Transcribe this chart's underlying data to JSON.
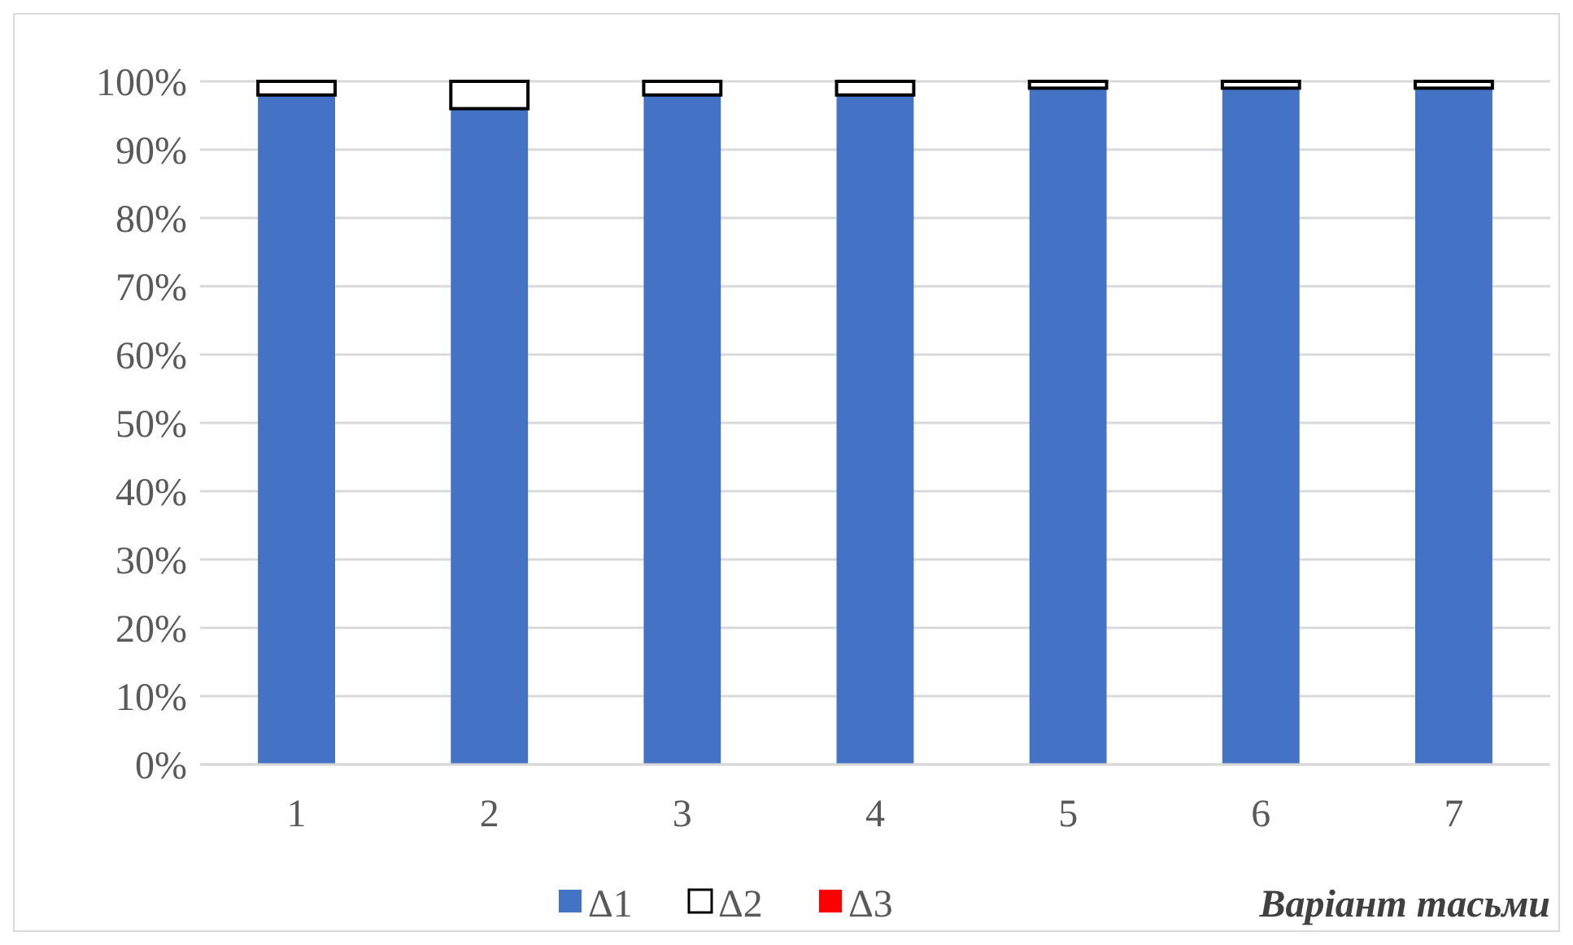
{
  "chart_data": {
    "type": "bar",
    "stacked": true,
    "xlabel": "Варіант тасьми",
    "categories": [
      "1",
      "2",
      "3",
      "4",
      "5",
      "6",
      "7"
    ],
    "series": [
      {
        "name": "Δ1",
        "color": "#4472c4",
        "values": [
          98,
          96,
          98,
          98,
          99,
          99,
          99
        ]
      },
      {
        "name": "Δ2",
        "color": "#ffffff",
        "values": [
          2,
          4,
          2,
          2,
          1,
          1,
          1
        ]
      },
      {
        "name": "Δ3",
        "color": "#ff0000",
        "values": [
          0,
          0,
          0,
          0,
          0,
          0,
          0
        ]
      }
    ],
    "ylim": [
      0,
      100
    ],
    "yticks": [
      {
        "value": 0,
        "label": "0%"
      },
      {
        "value": 10,
        "label": "10%"
      },
      {
        "value": 20,
        "label": "20%"
      },
      {
        "value": 30,
        "label": "30%"
      },
      {
        "value": 40,
        "label": "40%"
      },
      {
        "value": 50,
        "label": "50%"
      },
      {
        "value": 60,
        "label": "60%"
      },
      {
        "value": 70,
        "label": "70%"
      },
      {
        "value": 80,
        "label": "80%"
      },
      {
        "value": 90,
        "label": "90%"
      },
      {
        "value": 100,
        "label": "100%"
      }
    ],
    "grid": "y",
    "legend": "bottom"
  }
}
